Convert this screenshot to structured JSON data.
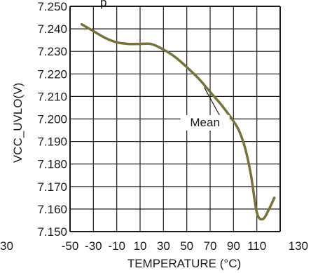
{
  "chart_data": {
    "type": "line",
    "title": "",
    "xlabel": "TEMPERATURE (°C)",
    "ylabel": "VCC_UVLO(V)",
    "xlim": [
      -50,
      130
    ],
    "ylim": [
      7.15,
      7.25
    ],
    "x_ticks": [
      -50,
      -30,
      -10,
      10,
      30,
      50,
      70,
      90,
      110,
      130
    ],
    "x_tick_labels": [
      "-50",
      "-30",
      "-10",
      "10",
      "30",
      "50",
      "70",
      "90",
      "110",
      "130"
    ],
    "y_ticks": [
      7.15,
      7.16,
      7.17,
      7.18,
      7.19,
      7.2,
      7.21,
      7.22,
      7.23,
      7.24,
      7.25
    ],
    "y_tick_labels": [
      "7.150",
      "7.160",
      "7.170",
      "7.180",
      "7.190",
      "7.200",
      "7.210",
      "7.220",
      "7.230",
      "7.240",
      "7.250"
    ],
    "grid": true,
    "series": [
      {
        "name": "Mean",
        "color": "#77723a",
        "x": [
          -40,
          -30,
          -20,
          -10,
          0,
          10,
          20,
          30,
          40,
          50,
          60,
          70,
          80,
          90,
          95,
          100,
          105,
          110,
          115,
          120,
          125
        ],
        "y": [
          7.242,
          7.239,
          7.236,
          7.234,
          7.2333,
          7.2333,
          7.2332,
          7.2308,
          7.2275,
          7.223,
          7.218,
          7.212,
          7.206,
          7.199,
          7.1945,
          7.187,
          7.175,
          7.1585,
          7.1555,
          7.1595,
          7.165
        ]
      }
    ],
    "annotations": [
      {
        "text": "Mean",
        "x": 65,
        "y": 7.214
      }
    ]
  },
  "edge_fragments": {
    "top_left": "p",
    "bottom_left": "30"
  },
  "colors": {
    "line": "#77723a",
    "grid": "#1a1a1a",
    "axis": "#1a1a1a"
  }
}
